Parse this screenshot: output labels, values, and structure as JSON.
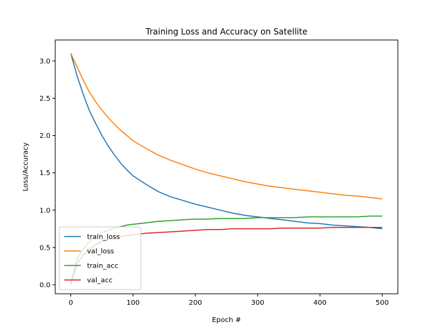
{
  "chart_data": {
    "type": "line",
    "title": "Training Loss and Accuracy on Satellite",
    "xlabel": "Epoch #",
    "ylabel": "Loss/Accuracy",
    "xlim": [
      -25,
      525
    ],
    "ylim": [
      -0.12,
      3.28
    ],
    "xticks": [
      0,
      100,
      200,
      300,
      400,
      500
    ],
    "yticks": [
      0.0,
      0.5,
      1.0,
      1.5,
      2.0,
      2.5,
      3.0
    ],
    "grid": false,
    "legend_position": "lower-left",
    "x": [
      0,
      10,
      20,
      30,
      40,
      50,
      60,
      70,
      80,
      90,
      100,
      120,
      140,
      160,
      180,
      200,
      220,
      240,
      260,
      280,
      300,
      320,
      340,
      360,
      380,
      400,
      420,
      440,
      460,
      480,
      500
    ],
    "series": [
      {
        "name": "train_loss",
        "color": "#1f77b4",
        "values": [
          3.1,
          2.8,
          2.55,
          2.33,
          2.16,
          2.0,
          1.86,
          1.74,
          1.63,
          1.54,
          1.46,
          1.35,
          1.25,
          1.18,
          1.13,
          1.08,
          1.04,
          1.0,
          0.96,
          0.93,
          0.91,
          0.89,
          0.87,
          0.85,
          0.83,
          0.82,
          0.8,
          0.79,
          0.78,
          0.77,
          0.75
        ]
      },
      {
        "name": "val_loss",
        "color": "#ff7f0e",
        "values": [
          3.1,
          2.92,
          2.74,
          2.58,
          2.45,
          2.34,
          2.24,
          2.15,
          2.07,
          2.0,
          1.93,
          1.83,
          1.74,
          1.67,
          1.61,
          1.55,
          1.5,
          1.46,
          1.42,
          1.38,
          1.35,
          1.32,
          1.3,
          1.28,
          1.26,
          1.24,
          1.22,
          1.2,
          1.19,
          1.17,
          1.15
        ]
      },
      {
        "name": "train_acc",
        "color": "#2ca02c",
        "values": [
          0.02,
          0.35,
          0.48,
          0.58,
          0.65,
          0.7,
          0.73,
          0.76,
          0.78,
          0.8,
          0.81,
          0.83,
          0.85,
          0.86,
          0.87,
          0.88,
          0.88,
          0.89,
          0.89,
          0.89,
          0.9,
          0.9,
          0.9,
          0.9,
          0.91,
          0.91,
          0.91,
          0.91,
          0.91,
          0.92,
          0.92
        ]
      },
      {
        "name": "val_acc",
        "color": "#d62728",
        "values": [
          0.0,
          0.28,
          0.4,
          0.48,
          0.54,
          0.58,
          0.61,
          0.63,
          0.65,
          0.66,
          0.67,
          0.69,
          0.7,
          0.71,
          0.72,
          0.73,
          0.74,
          0.74,
          0.75,
          0.75,
          0.75,
          0.75,
          0.76,
          0.76,
          0.76,
          0.76,
          0.77,
          0.77,
          0.77,
          0.77,
          0.77
        ]
      }
    ]
  }
}
